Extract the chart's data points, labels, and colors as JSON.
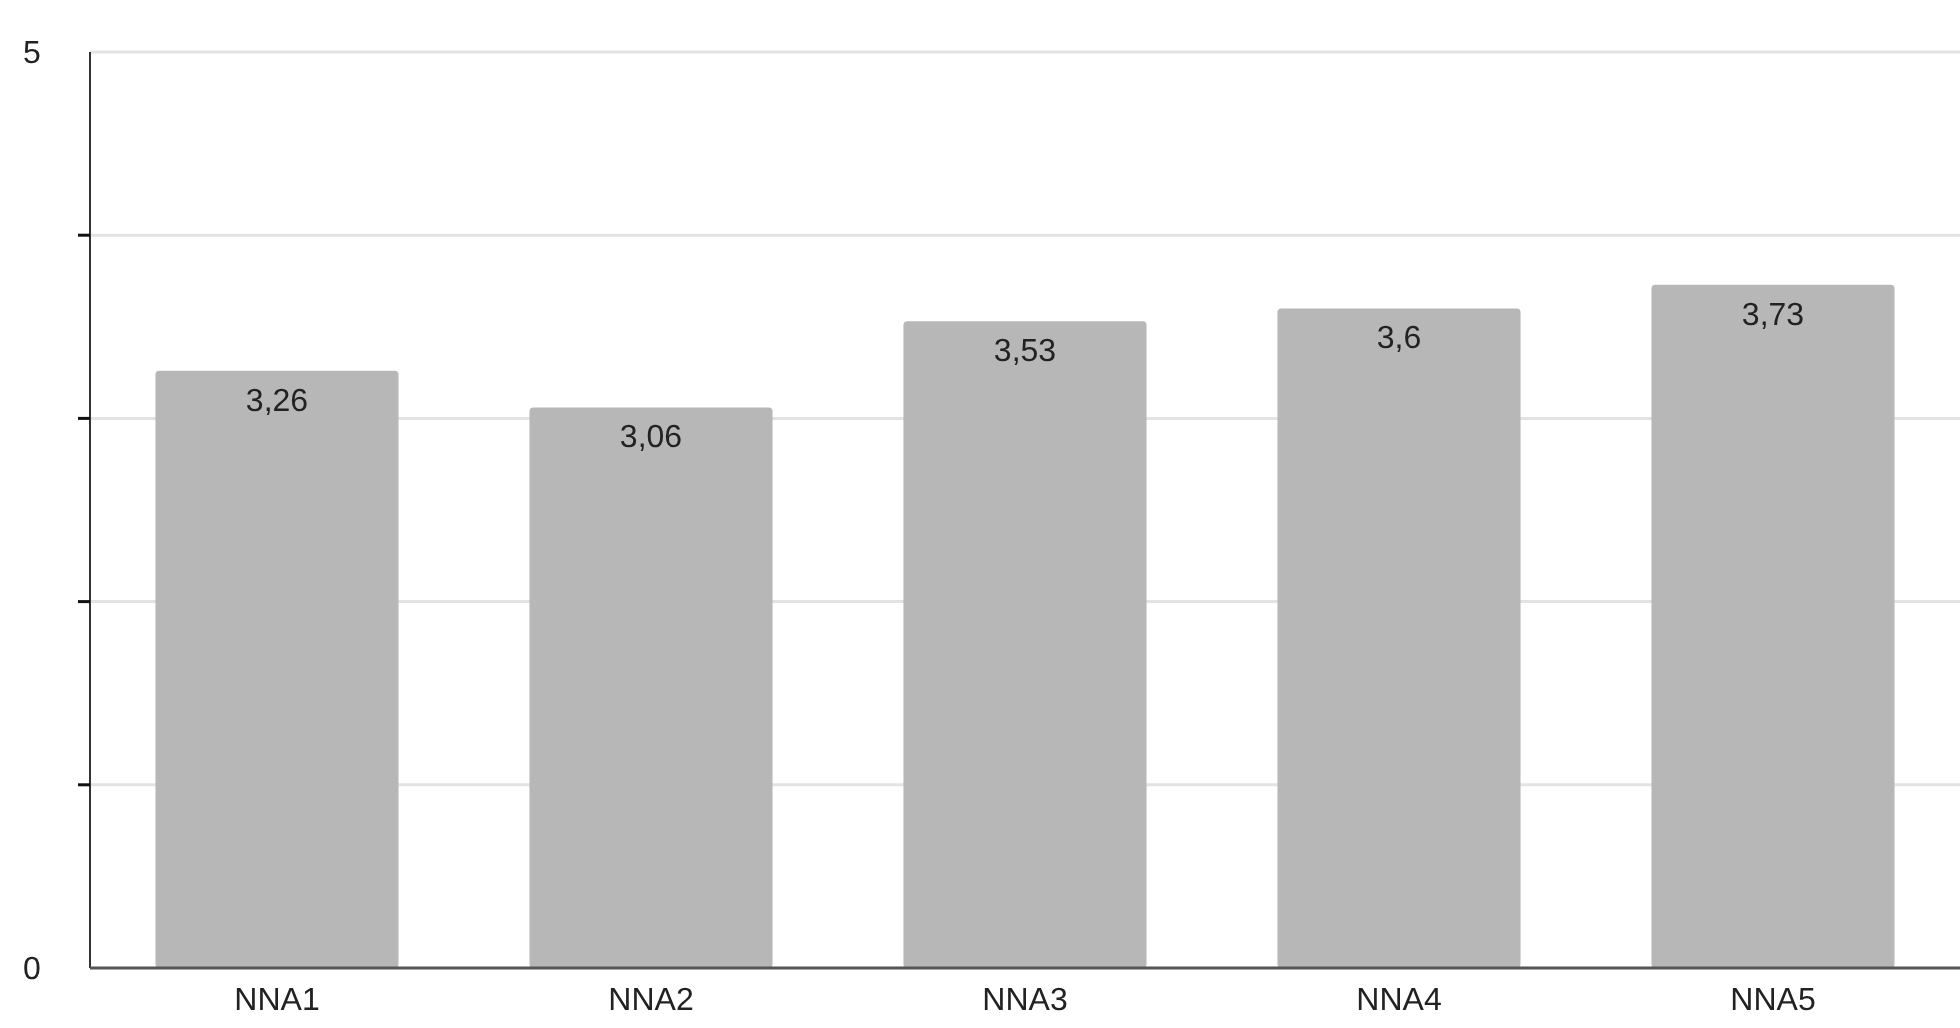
{
  "chart_data": {
    "type": "bar",
    "categories": [
      "NNA1",
      "NNA2",
      "NNA3",
      "NNA4",
      "NNA5"
    ],
    "values": [
      3.26,
      3.06,
      3.53,
      3.6,
      3.73
    ],
    "value_labels": [
      "3,26",
      "3,06",
      "3,53",
      "3,6",
      "3,73"
    ],
    "color": "#b7b7b7",
    "ylim": [
      0,
      5
    ],
    "yticks": [
      0,
      {
        "value": 1,
        "label": null
      },
      {
        "value": 2,
        "label": null
      },
      {
        "value": 3,
        "label": null
      },
      {
        "value": 4,
        "label": null
      },
      5
    ],
    "grid": "y"
  }
}
